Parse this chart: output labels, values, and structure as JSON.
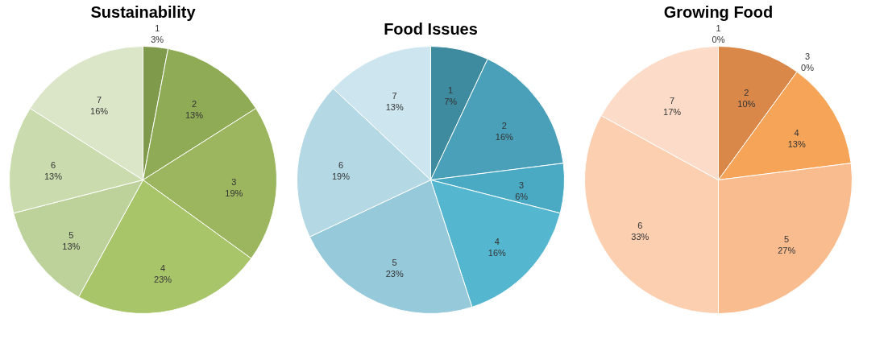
{
  "chart_data": [
    {
      "type": "pie",
      "title": "Sustainability",
      "categories": [
        "1",
        "2",
        "3",
        "4",
        "5",
        "6",
        "7"
      ],
      "values": [
        3,
        13,
        19,
        23,
        13,
        13,
        16
      ],
      "value_labels": [
        "3%",
        "13%",
        "19%",
        "23%",
        "13%",
        "13%",
        "16%"
      ],
      "colors": [
        "#7f9a4a",
        "#8fab55",
        "#9bb65e",
        "#a9c56a",
        "#bdd19a",
        "#cadcae",
        "#dbe6c8"
      ]
    },
    {
      "type": "pie",
      "title": "Food Issues",
      "categories": [
        "1",
        "2",
        "3",
        "4",
        "5",
        "6",
        "7"
      ],
      "values": [
        7,
        16,
        6,
        16,
        23,
        19,
        13
      ],
      "value_labels": [
        "7%",
        "16%",
        "6%",
        "16%",
        "23%",
        "19%",
        "13%"
      ],
      "colors": [
        "#3e8a9e",
        "#4aa0b8",
        "#4aaac4",
        "#55b6cf",
        "#96c9da",
        "#b5d8e5",
        "#cde5ee"
      ]
    },
    {
      "type": "pie",
      "title": "Growing Food",
      "categories": [
        "1",
        "2",
        "3",
        "4",
        "5",
        "6",
        "7"
      ],
      "values": [
        0,
        10,
        0,
        13,
        27,
        33,
        17
      ],
      "value_labels": [
        "0%",
        "10%",
        "0%",
        "13%",
        "27%",
        "33%",
        "17%"
      ],
      "colors": [
        "#c06a2a",
        "#d9884a",
        "#e8904a",
        "#f6a457",
        "#f9bc8f",
        "#fbcfb0",
        "#fcdcc8"
      ]
    }
  ]
}
